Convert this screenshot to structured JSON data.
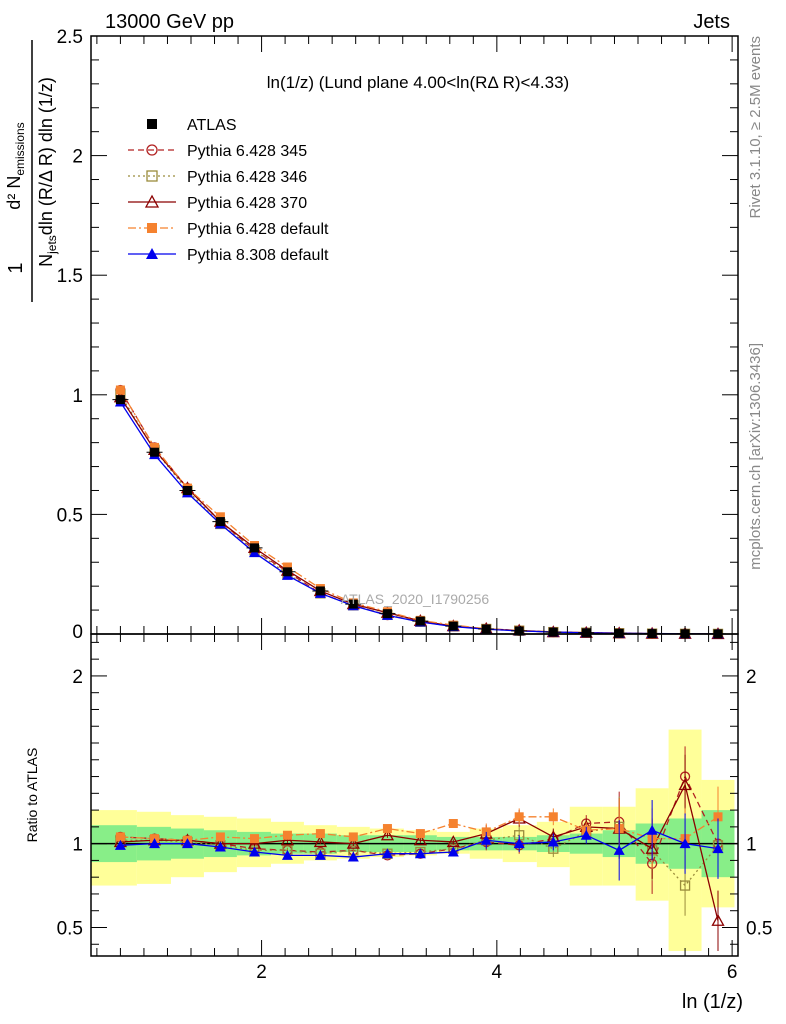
{
  "header": {
    "left": "13000 GeV pp",
    "right": "Jets"
  },
  "side_labels": {
    "rivet": "Rivet 3.1.10, ≥ 2.5M events",
    "mcplots": "mcplots.cern.ch [arXiv:1306.3436]"
  },
  "watermark": "ATLAS_2020_I1790256",
  "chart_data": [
    {
      "type": "line",
      "title": "ln(1/z) (Lund plane 4.00<ln(RΔ R)<4.33)",
      "ylabel": "1/N_jets d²N_emissions / dln(R/ΔR) dln(1/z)",
      "xlim": [
        0.55,
        6.05
      ],
      "ylim": [
        0,
        2.5
      ],
      "yticks": [
        "0.5",
        "1",
        "1.5",
        "2",
        "2.5"
      ],
      "x": [
        0.8,
        1.09,
        1.37,
        1.65,
        1.94,
        2.22,
        2.5,
        2.78,
        3.07,
        3.35,
        3.63,
        3.91,
        4.19,
        4.48,
        4.76,
        5.04,
        5.32,
        5.6,
        5.88
      ],
      "series": [
        {
          "name": "ATLAS",
          "color": "#000000",
          "marker": "square",
          "values": [
            0.98,
            0.76,
            0.6,
            0.47,
            0.36,
            0.26,
            0.18,
            0.125,
            0.085,
            0.054,
            0.033,
            0.021,
            0.013,
            0.008,
            0.005,
            0.003,
            0.0018,
            0.001,
            0.0005
          ]
        },
        {
          "name": "Pythia 6.428 345",
          "color": "#b22222",
          "marker": "circle-open",
          "dash": "6,4",
          "values": [
            1.02,
            0.78,
            0.61,
            0.47,
            0.35,
            0.26,
            0.17,
            0.12,
            0.079,
            0.051,
            0.032,
            0.021,
            0.013,
            0.008,
            0.0055,
            0.0035,
            0.0016,
            0.0014,
            0.0005
          ]
        },
        {
          "name": "Pythia 6.428 346",
          "color": "#9a8c3c",
          "marker": "square-open",
          "dash": "2,3",
          "values": [
            1.0,
            0.77,
            0.6,
            0.46,
            0.35,
            0.25,
            0.17,
            0.12,
            0.08,
            0.051,
            0.032,
            0.021,
            0.014,
            0.008,
            0.0054,
            0.0033,
            0.0016,
            0.00075,
            0.0005
          ]
        },
        {
          "name": "Pythia 6.428 370",
          "color": "#8b0000",
          "marker": "triangle-open",
          "dash": "",
          "values": [
            0.99,
            0.77,
            0.61,
            0.47,
            0.36,
            0.265,
            0.18,
            0.125,
            0.089,
            0.055,
            0.033,
            0.022,
            0.015,
            0.008,
            0.0055,
            0.0034,
            0.0017,
            0.00135,
            0.00027
          ]
        },
        {
          "name": "Pythia 6.428 default",
          "color": "#f5822f",
          "marker": "square",
          "dash": "8,3,2,3",
          "values": [
            1.02,
            0.78,
            0.61,
            0.49,
            0.37,
            0.28,
            0.19,
            0.13,
            0.093,
            0.057,
            0.037,
            0.022,
            0.015,
            0.009,
            0.0055,
            0.0034,
            0.0018,
            0.001,
            0.0006
          ]
        },
        {
          "name": "Pythia 8.308 default",
          "color": "#0000ee",
          "marker": "triangle",
          "dash": "",
          "values": [
            0.97,
            0.75,
            0.59,
            0.46,
            0.34,
            0.245,
            0.17,
            0.118,
            0.078,
            0.05,
            0.031,
            0.02,
            0.013,
            0.008,
            0.0052,
            0.0028,
            0.002,
            0.001,
            0.0005
          ]
        }
      ]
    },
    {
      "type": "line",
      "ylabel": "Ratio to ATLAS",
      "xlabel": "ln (1/z)",
      "xlim": [
        0.55,
        6.05
      ],
      "ylim": [
        0.33,
        2.25
      ],
      "yticks": [
        "0.5",
        "1",
        "2"
      ],
      "xticks": [
        "2",
        "4",
        "6"
      ],
      "band_edges": [
        0.55,
        0.94,
        1.23,
        1.51,
        1.79,
        2.08,
        2.36,
        2.64,
        2.92,
        3.21,
        3.49,
        3.77,
        4.05,
        4.34,
        4.62,
        4.9,
        5.18,
        5.46,
        5.74,
        6.02
      ],
      "band_green": [
        [
          0.89,
          1.11
        ],
        [
          0.9,
          1.1
        ],
        [
          0.91,
          1.09
        ],
        [
          0.92,
          1.08
        ],
        [
          0.93,
          1.07
        ],
        [
          0.94,
          1.06
        ],
        [
          0.94,
          1.06
        ],
        [
          0.95,
          1.05
        ],
        [
          0.95,
          1.05
        ],
        [
          0.95,
          1.05
        ],
        [
          0.96,
          1.04
        ],
        [
          0.96,
          1.04
        ],
        [
          0.96,
          1.04
        ],
        [
          0.95,
          1.05
        ],
        [
          0.94,
          1.06
        ],
        [
          0.92,
          1.08
        ],
        [
          0.88,
          1.12
        ],
        [
          0.85,
          1.15
        ],
        [
          0.8,
          1.2
        ]
      ],
      "band_yellow": [
        [
          0.75,
          1.2
        ],
        [
          0.76,
          1.19
        ],
        [
          0.8,
          1.17
        ],
        [
          0.83,
          1.16
        ],
        [
          0.86,
          1.15
        ],
        [
          0.88,
          1.13
        ],
        [
          0.9,
          1.11
        ],
        [
          0.91,
          1.1
        ],
        [
          0.92,
          1.09
        ],
        [
          0.93,
          1.08
        ],
        [
          0.94,
          1.07
        ],
        [
          0.91,
          1.09
        ],
        [
          0.89,
          1.11
        ],
        [
          0.86,
          1.13
        ],
        [
          0.75,
          1.22
        ],
        [
          0.75,
          1.22
        ],
        [
          0.66,
          1.33
        ],
        [
          0.36,
          1.68
        ],
        [
          0.62,
          1.38
        ]
      ],
      "series": [
        {
          "name": "Pythia 6.428 345",
          "color": "#b22222",
          "values": [
            1.04,
            1.03,
            1.02,
            1.0,
            0.97,
            0.96,
            0.95,
            0.96,
            0.93,
            0.94,
            0.97,
            1.01,
            0.99,
            1.03,
            1.12,
            1.13,
            0.88,
            1.4,
            1.0
          ]
        },
        {
          "name": "Pythia 6.428 346",
          "color": "#9a8c3c",
          "values": [
            1.02,
            1.02,
            1.01,
            0.99,
            0.96,
            0.96,
            0.94,
            0.96,
            0.94,
            0.95,
            0.97,
            1.02,
            1.05,
            0.97,
            1.07,
            1.1,
            0.96,
            0.75,
            0.99
          ]
        },
        {
          "name": "Pythia 6.428 370",
          "color": "#8b0000",
          "values": [
            1.01,
            1.02,
            1.02,
            1.0,
            1.0,
            1.02,
            1.01,
            1.0,
            1.05,
            1.02,
            1.01,
            1.06,
            1.15,
            1.04,
            1.1,
            1.09,
            0.97,
            1.35,
            0.54
          ]
        },
        {
          "name": "Pythia 6.428 default",
          "color": "#f5822f",
          "values": [
            1.04,
            1.03,
            1.02,
            1.04,
            1.03,
            1.05,
            1.06,
            1.04,
            1.09,
            1.06,
            1.12,
            1.07,
            1.16,
            1.16,
            1.08,
            1.09,
            1.03,
            1.03,
            1.16
          ]
        },
        {
          "name": "Pythia 8.308 default",
          "color": "#0000ee",
          "values": [
            0.99,
            1.0,
            1.0,
            0.98,
            0.95,
            0.93,
            0.93,
            0.92,
            0.94,
            0.94,
            0.95,
            1.02,
            1.0,
            1.01,
            1.05,
            0.96,
            1.08,
            1.0,
            0.97
          ]
        }
      ]
    }
  ]
}
